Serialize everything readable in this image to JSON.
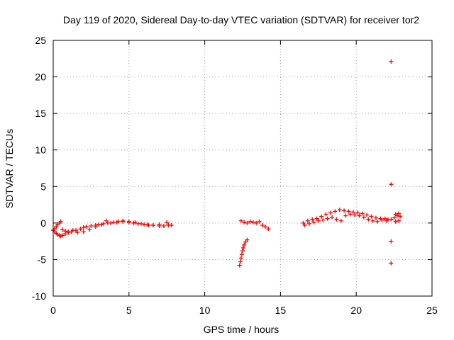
{
  "chart_data": {
    "type": "scatter",
    "title": "Day 119 of 2020, Sidereal Day-to-day VTEC variation (SDTVAR) for receiver tor2",
    "xlabel": "GPS time / hours",
    "ylabel": "SDTVAR / TECUs",
    "xlim": [
      0,
      25
    ],
    "ylim": [
      -10,
      25
    ],
    "grid": true,
    "xticks": [
      0,
      5,
      10,
      15,
      20,
      25
    ],
    "xtick_labels": [
      "0",
      "5",
      "10",
      "15",
      "20",
      "25"
    ],
    "yticks": [
      -10,
      -5,
      0,
      5,
      10,
      15,
      20,
      25
    ],
    "ytick_labels": [
      "-10",
      "-5",
      "0",
      "5",
      "10",
      "15",
      "20",
      "25"
    ],
    "marker": "+",
    "color": "#ff0000",
    "series": [
      {
        "name": "tor2 segment 1",
        "x": [
          0.0,
          0.1,
          0.2,
          0.3,
          0.4,
          0.5,
          0.6,
          0.8,
          1.0,
          1.2,
          1.5,
          1.8,
          2.0,
          2.2,
          2.5,
          2.8,
          3.0,
          3.3,
          3.6,
          4.0,
          4.3,
          4.6,
          5.0,
          5.3,
          5.6,
          6.0,
          6.3,
          6.6,
          7.0,
          7.3,
          7.6,
          7.8
        ],
        "y": [
          -1.0,
          -1.2,
          -1.4,
          -1.6,
          -1.7,
          -1.8,
          -1.7,
          -1.5,
          -1.3,
          -1.2,
          -1.0,
          -0.8,
          -0.6,
          -0.5,
          -0.4,
          -0.3,
          -0.2,
          -0.1,
          0.0,
          0.1,
          0.2,
          0.2,
          0.1,
          0.0,
          -0.1,
          -0.2,
          -0.3,
          -0.3,
          -0.4,
          -0.4,
          -0.3,
          -0.3
        ]
      },
      {
        "name": "tor2 segment 1 (upper branch)",
        "x": [
          0.1,
          0.2,
          0.3,
          0.4,
          0.5,
          0.6,
          0.8,
          1.0,
          1.3,
          1.6,
          2.0,
          2.4,
          2.8,
          3.2,
          3.5,
          3.8,
          4.2,
          4.6,
          5.0,
          5.4,
          5.8,
          6.2,
          6.6,
          7.0,
          7.5
        ],
        "y": [
          -0.8,
          -0.5,
          -0.2,
          0.0,
          0.2,
          -0.9,
          -1.1,
          -1.2,
          -1.0,
          -1.3,
          -1.2,
          -0.9,
          -0.5,
          -0.2,
          0.3,
          0.0,
          0.1,
          0.3,
          0.2,
          0.1,
          -0.1,
          -0.2,
          -0.3,
          -0.2,
          0.1
        ]
      },
      {
        "name": "tor2 segment 2",
        "x": [
          12.3,
          12.35,
          12.4,
          12.45,
          12.5,
          12.55,
          12.6,
          12.7,
          12.8,
          12.4,
          12.6,
          12.8,
          13.0,
          13.2,
          13.4,
          13.6,
          13.8,
          14.0,
          14.2
        ],
        "y": [
          -5.8,
          -5.3,
          -4.8,
          -4.3,
          -3.8,
          -3.4,
          -3.0,
          -2.6,
          -2.3,
          0.3,
          0.1,
          0.0,
          0.2,
          0.1,
          0.0,
          0.2,
          -0.3,
          -0.5,
          -0.8
        ]
      },
      {
        "name": "tor2 segment 3",
        "x": [
          16.5,
          16.8,
          17.1,
          17.4,
          17.7,
          18.0,
          18.3,
          18.6,
          18.9,
          19.2,
          19.5,
          19.8,
          20.1,
          20.4,
          20.7,
          21.0,
          21.3,
          21.6,
          21.9,
          22.1
        ],
        "y": [
          0.0,
          0.3,
          0.5,
          0.6,
          0.9,
          1.2,
          1.4,
          1.6,
          1.8,
          1.7,
          1.6,
          1.5,
          1.4,
          1.3,
          1.1,
          0.9,
          0.7,
          0.6,
          0.6,
          0.5
        ]
      },
      {
        "name": "tor2 segment 3 (lower branch)",
        "x": [
          16.6,
          16.9,
          17.2,
          17.5,
          17.8,
          18.1,
          18.4,
          18.7,
          19.0,
          19.3,
          19.6,
          19.9,
          20.2,
          20.5,
          20.8,
          21.1,
          21.4,
          21.7,
          22.0
        ],
        "y": [
          -0.3,
          -0.1,
          0.1,
          0.3,
          0.4,
          0.6,
          0.8,
          0.5,
          0.3,
          1.0,
          1.2,
          1.1,
          1.0,
          0.8,
          0.5,
          0.3,
          0.2,
          0.4,
          0.3
        ]
      },
      {
        "name": "tor2 segment 4",
        "x": [
          22.3,
          22.3,
          22.3,
          22.3,
          22.3,
          22.5,
          22.6,
          22.7,
          22.8,
          22.9,
          22.6,
          22.8
        ],
        "y": [
          22.1,
          5.3,
          -2.5,
          -5.5,
          0.5,
          0.7,
          1.2,
          1.0,
          1.3,
          0.9,
          0.2,
          0.3
        ]
      }
    ]
  }
}
